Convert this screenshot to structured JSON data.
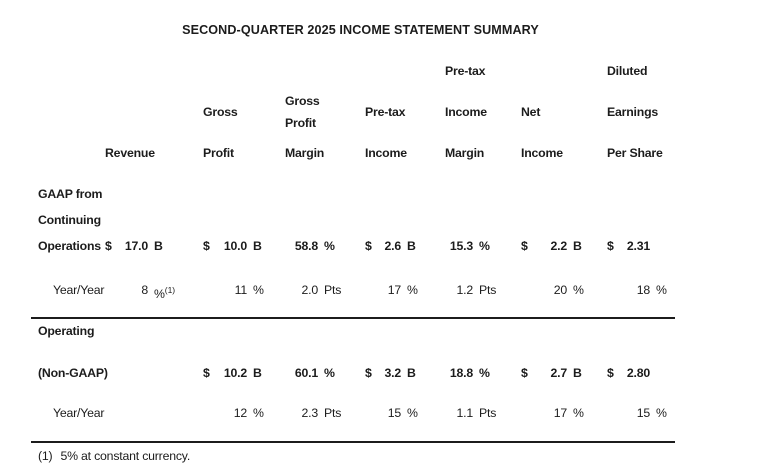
{
  "title": "SECOND-QUARTER 2025 INCOME STATEMENT SUMMARY",
  "colors": {
    "text": "#1c1c1c",
    "background": "#ffffff",
    "rule": "#1c1c1c"
  },
  "columns": {
    "revenue": {
      "line3": "Revenue"
    },
    "gross_profit": {
      "line2": "Gross",
      "line3": "Profit"
    },
    "gross_profit_margin": {
      "line2a": "Gross",
      "line2b": "Profit",
      "line3": "Margin"
    },
    "pretax_income": {
      "line2": "Pre-tax",
      "line3": "Income"
    },
    "pretax_income_margin": {
      "line1": "Pre-tax",
      "line2": "Income",
      "line3": "Margin"
    },
    "net_income": {
      "line2": "Net",
      "line3": "Income"
    },
    "diluted_eps": {
      "line1": "Diluted",
      "line2": "Earnings",
      "line3": "Per Share"
    }
  },
  "rows": {
    "gaap": {
      "label_line1": "GAAP from",
      "label_line2": "Continuing",
      "label_line3": "Operations",
      "values": [
        {
          "sym": "$",
          "num": "17.0",
          "unit": "B"
        },
        {
          "sym": "$",
          "num": "10.0",
          "unit": "B"
        },
        {
          "sym": "",
          "num": "58.8",
          "unit": "%"
        },
        {
          "sym": "$",
          "num": "2.6",
          "unit": "B"
        },
        {
          "sym": "",
          "num": "15.3",
          "unit": "%"
        },
        {
          "sym": "$",
          "num": "2.2",
          "unit": "B"
        },
        {
          "sym": "$",
          "num": "2.31",
          "unit": ""
        }
      ],
      "yoy_label": "Year/Year",
      "yoy": [
        {
          "sym": "",
          "num": "8",
          "unit": "%",
          "sup": "(1)"
        },
        {
          "sym": "",
          "num": "11",
          "unit": "%"
        },
        {
          "sym": "",
          "num": "2.0",
          "unit": "Pts"
        },
        {
          "sym": "",
          "num": "17",
          "unit": "%"
        },
        {
          "sym": "",
          "num": "1.2",
          "unit": "Pts"
        },
        {
          "sym": "",
          "num": "20",
          "unit": "%"
        },
        {
          "sym": "",
          "num": "18",
          "unit": "%"
        }
      ]
    },
    "non_gaap": {
      "label_line1": "Operating",
      "label_line2": "(Non-GAAP)",
      "values": [
        {
          "sym": "",
          "num": "",
          "unit": ""
        },
        {
          "sym": "$",
          "num": "10.2",
          "unit": "B"
        },
        {
          "sym": "",
          "num": "60.1",
          "unit": "%"
        },
        {
          "sym": "$",
          "num": "3.2",
          "unit": "B"
        },
        {
          "sym": "",
          "num": "18.8",
          "unit": "%"
        },
        {
          "sym": "$",
          "num": "2.7",
          "unit": "B"
        },
        {
          "sym": "$",
          "num": "2.80",
          "unit": ""
        }
      ],
      "yoy_label": "Year/Year",
      "yoy": [
        {
          "sym": "",
          "num": "",
          "unit": ""
        },
        {
          "sym": "",
          "num": "12",
          "unit": "%"
        },
        {
          "sym": "",
          "num": "2.3",
          "unit": "Pts"
        },
        {
          "sym": "",
          "num": "15",
          "unit": "%"
        },
        {
          "sym": "",
          "num": "1.1",
          "unit": "Pts"
        },
        {
          "sym": "",
          "num": "17",
          "unit": "%"
        },
        {
          "sym": "",
          "num": "15",
          "unit": "%"
        }
      ]
    }
  },
  "footnote": {
    "marker": "(1)",
    "text": "5% at constant currency."
  }
}
